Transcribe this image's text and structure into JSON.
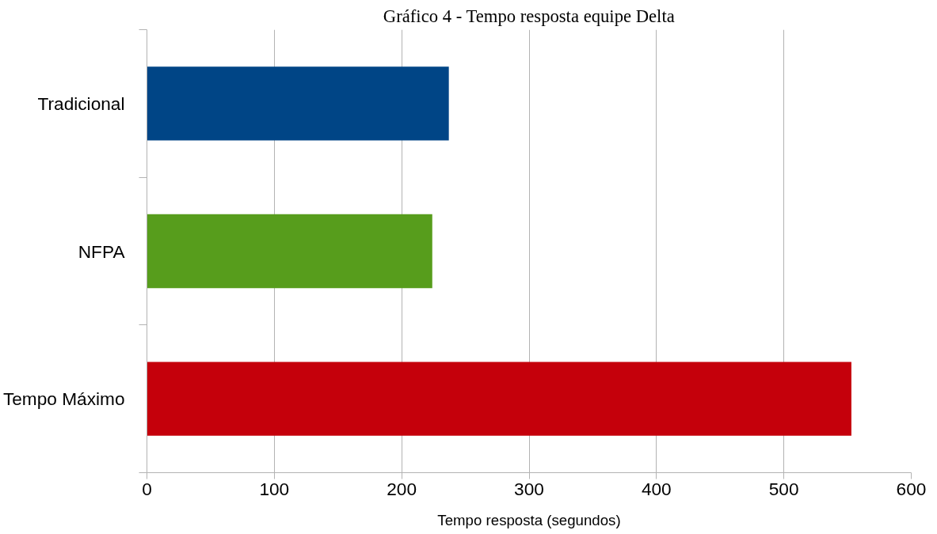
{
  "chart_data": {
    "type": "bar",
    "orientation": "horizontal",
    "title": "Gráfico 4 - Tempo resposta equipe Delta",
    "xlabel": "Tempo resposta (segundos)",
    "categories": [
      "Tradicional",
      "NFPA",
      "Tempo Máximo"
    ],
    "values": [
      237,
      224,
      553
    ],
    "colors": [
      "#004586",
      "#579d1c",
      "#c5000b"
    ],
    "xlim": [
      0,
      600
    ],
    "xticks": [
      0,
      100,
      200,
      300,
      400,
      500,
      600
    ],
    "grid": "x"
  }
}
